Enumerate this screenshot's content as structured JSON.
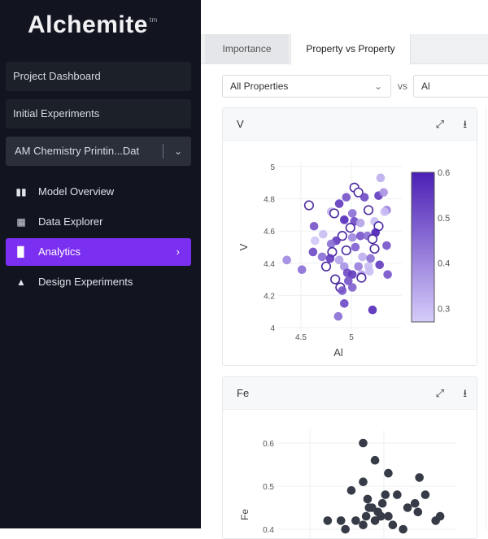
{
  "sidebar": {
    "logo": "Alchemite",
    "logo_tm": "tm",
    "project_dashboard": "Project Dashboard",
    "initial_experiments": "Initial Experiments",
    "dataset_select": "AM Chemistry Printin...Dat",
    "nav": [
      {
        "label": "Model Overview",
        "icon": "model-overview-icon"
      },
      {
        "label": "Data Explorer",
        "icon": "grid-icon"
      },
      {
        "label": "Analytics",
        "icon": "bar-chart-icon",
        "active": true
      },
      {
        "label": "Design Experiments",
        "icon": "flask-icon"
      }
    ]
  },
  "main": {
    "tabs": [
      {
        "label": "Importance"
      },
      {
        "label": "Property vs Property",
        "active": true
      }
    ],
    "property_select": "All Properties",
    "vs_label": "vs",
    "x_select": "Al"
  },
  "colors": {
    "accent": "#7b2ff0",
    "sidebar_bg": "#12151f",
    "color_low": "#d6ccfa",
    "color_high": "#4b1fb5",
    "fe_points": "#363b47"
  },
  "chart_data": [
    {
      "type": "scatter",
      "title": "V",
      "xlabel": "Al",
      "ylabel": "V",
      "xticks": [
        "4.5",
        "5"
      ],
      "yticks": [
        "4",
        "4.2",
        "4.4",
        "4.6",
        "4.8",
        "5"
      ],
      "ylim": [
        4,
        5
      ],
      "grid": true,
      "colorbar": {
        "ticks": [
          "0.3",
          "0.4",
          "0.5",
          "0.6"
        ],
        "range": [
          0.27,
          0.6
        ]
      },
      "points": [
        [
          5.29,
          4.93,
          0.33,
          0
        ],
        [
          5.03,
          4.87,
          0.5,
          1
        ],
        [
          5.07,
          4.84,
          0.45,
          1
        ],
        [
          4.95,
          4.81,
          0.5,
          0
        ],
        [
          5.13,
          4.81,
          0.52,
          0
        ],
        [
          5.27,
          4.82,
          0.55,
          0
        ],
        [
          5.32,
          4.84,
          0.38,
          0
        ],
        [
          4.58,
          4.76,
          0.5,
          1
        ],
        [
          4.88,
          4.77,
          0.55,
          0
        ],
        [
          4.8,
          4.72,
          0.32,
          0
        ],
        [
          4.83,
          4.71,
          0.45,
          1
        ],
        [
          5.01,
          4.71,
          0.45,
          0
        ],
        [
          5.17,
          4.73,
          0.4,
          1
        ],
        [
          5.35,
          4.73,
          0.42,
          0
        ],
        [
          5.33,
          4.72,
          0.3,
          0
        ],
        [
          4.93,
          4.67,
          0.58,
          0
        ],
        [
          5.03,
          4.66,
          0.52,
          0
        ],
        [
          5.09,
          4.65,
          0.35,
          0
        ],
        [
          5.23,
          4.66,
          0.3,
          0
        ],
        [
          4.63,
          4.63,
          0.5,
          0
        ],
        [
          4.99,
          4.62,
          0.45,
          1
        ],
        [
          5.27,
          4.63,
          0.5,
          1
        ],
        [
          5.24,
          4.59,
          0.6,
          0
        ],
        [
          4.72,
          4.58,
          0.3,
          0
        ],
        [
          4.64,
          4.54,
          0.28,
          0
        ],
        [
          4.91,
          4.57,
          0.45,
          1
        ],
        [
          4.85,
          4.54,
          0.55,
          0
        ],
        [
          4.8,
          4.52,
          0.45,
          0
        ],
        [
          5.01,
          4.56,
          0.4,
          0
        ],
        [
          5.09,
          4.57,
          0.5,
          0
        ],
        [
          5.16,
          4.57,
          0.45,
          0
        ],
        [
          5.21,
          4.55,
          0.4,
          1
        ],
        [
          5.35,
          4.51,
          0.5,
          0
        ],
        [
          4.95,
          4.48,
          0.4,
          1
        ],
        [
          4.81,
          4.47,
          0.45,
          1
        ],
        [
          5.04,
          4.5,
          0.48,
          0
        ],
        [
          5.23,
          4.49,
          0.45,
          1
        ],
        [
          4.62,
          4.47,
          0.52,
          0
        ],
        [
          4.36,
          4.42,
          0.4,
          0
        ],
        [
          4.51,
          4.36,
          0.45,
          0
        ],
        [
          4.71,
          4.44,
          0.45,
          0
        ],
        [
          4.79,
          4.43,
          0.55,
          0
        ],
        [
          4.75,
          4.38,
          0.48,
          1
        ],
        [
          4.88,
          4.42,
          0.35,
          0
        ],
        [
          4.93,
          4.38,
          0.38,
          0
        ],
        [
          5.07,
          4.38,
          0.42,
          0
        ],
        [
          5.17,
          4.38,
          0.3,
          0
        ],
        [
          5.28,
          4.39,
          0.55,
          0
        ],
        [
          5.11,
          4.44,
          0.33,
          0
        ],
        [
          5.19,
          4.43,
          0.45,
          0
        ],
        [
          4.96,
          4.34,
          0.52,
          0
        ],
        [
          5.01,
          4.33,
          0.55,
          0
        ],
        [
          5.1,
          4.33,
          0.35,
          0
        ],
        [
          5.18,
          4.35,
          0.3,
          0
        ],
        [
          5.36,
          4.33,
          0.5,
          0
        ],
        [
          4.84,
          4.3,
          0.45,
          1
        ],
        [
          4.97,
          4.29,
          0.5,
          0
        ],
        [
          5.1,
          4.31,
          0.4,
          1
        ],
        [
          4.89,
          4.25,
          0.5,
          1
        ],
        [
          4.91,
          4.23,
          0.5,
          0
        ],
        [
          5.01,
          4.25,
          0.48,
          0
        ],
        [
          4.93,
          4.15,
          0.52,
          0
        ],
        [
          5.21,
          4.11,
          0.58,
          0
        ],
        [
          4.87,
          4.07,
          0.45,
          0
        ]
      ]
    },
    {
      "type": "scatter",
      "title": "Fe",
      "ylabel": "Fe",
      "yticks": [
        "0.4",
        "0.5",
        "0.6"
      ],
      "grid": true,
      "points": [
        [
          4.86,
          0.6
        ],
        [
          4.94,
          0.56
        ],
        [
          5.03,
          0.53
        ],
        [
          4.86,
          0.51
        ],
        [
          5.24,
          0.52
        ],
        [
          4.78,
          0.49
        ],
        [
          5.01,
          0.48
        ],
        [
          5.09,
          0.48
        ],
        [
          5.28,
          0.48
        ],
        [
          4.89,
          0.47
        ],
        [
          4.99,
          0.46
        ],
        [
          5.21,
          0.46
        ],
        [
          5.16,
          0.45
        ],
        [
          5.23,
          0.44
        ],
        [
          4.9,
          0.45
        ],
        [
          4.96,
          0.44
        ],
        [
          5.03,
          0.43
        ],
        [
          5.38,
          0.43
        ],
        [
          5.35,
          0.42
        ],
        [
          4.62,
          0.42
        ],
        [
          4.71,
          0.42
        ],
        [
          4.81,
          0.42
        ],
        [
          4.74,
          0.4
        ],
        [
          4.86,
          0.41
        ],
        [
          4.94,
          0.42
        ],
        [
          5.06,
          0.41
        ],
        [
          5.13,
          0.4
        ],
        [
          4.92,
          0.45
        ],
        [
          4.98,
          0.43
        ],
        [
          4.88,
          0.43
        ]
      ]
    }
  ]
}
